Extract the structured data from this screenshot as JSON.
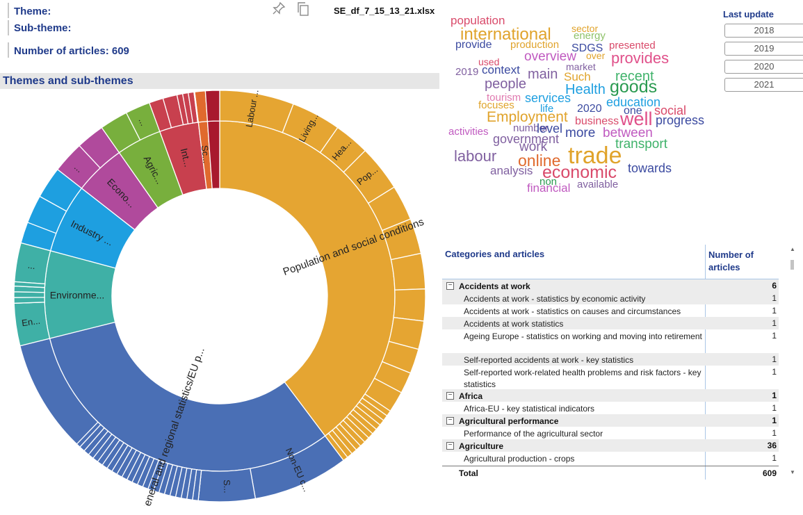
{
  "header": {
    "theme_label": "Theme:",
    "subtheme_label": "Sub-theme:",
    "articles_label": "Number of articles: 609",
    "file_name": "SE_df_7_15_13_21.xlsx",
    "pin_icon": "pin-icon",
    "copy_icon": "copy-icon"
  },
  "sunburst": {
    "section_title": "Themes and sub-themes",
    "colors": {
      "population": "#E5A532",
      "general": "#4A6FB5",
      "environment": "#3FB0A6",
      "industry": "#1E9FE0",
      "economy": "#B04A9C",
      "agriculture": "#78AF3D",
      "international": "#C8404E",
      "science": "#E06A2E",
      "other": "#A8192E"
    },
    "inner_labels": [
      "Population and social conditions",
      "General and regional statistics/EU p...",
      "Environme...",
      "Industry ...",
      "Econo...",
      "Agric...",
      "Int...",
      "Sc..."
    ],
    "outer_labels": [
      "Labour ...",
      "Living...",
      "Hea...",
      "Pop...",
      "Non-EU c...",
      "S...",
      "En...",
      "...",
      "...",
      "..."
    ]
  },
  "wordcloud": {
    "words": [
      {
        "t": "population",
        "c": "#d94a6a"
      },
      {
        "t": "international",
        "c": "#e0a32b"
      },
      {
        "t": "sector",
        "c": "#e0a32b"
      },
      {
        "t": "energy",
        "c": "#8fc26a"
      },
      {
        "t": "provide",
        "c": "#3b4aa0"
      },
      {
        "t": "production",
        "c": "#e0a32b"
      },
      {
        "t": "SDGS",
        "c": "#3b4aa0"
      },
      {
        "t": "presented",
        "c": "#d94a6a"
      },
      {
        "t": "used",
        "c": "#d94a6a"
      },
      {
        "t": "overview",
        "c": "#c05ac0"
      },
      {
        "t": "over",
        "c": "#e0a32b"
      },
      {
        "t": "provides",
        "c": "#e0508a"
      },
      {
        "t": "market",
        "c": "#8060a0"
      },
      {
        "t": "2019",
        "c": "#8060a0"
      },
      {
        "t": "context",
        "c": "#3b4aa0"
      },
      {
        "t": "main",
        "c": "#8060a0"
      },
      {
        "t": "Such",
        "c": "#e0a32b"
      },
      {
        "t": "recent",
        "c": "#3fb26a"
      },
      {
        "t": "people",
        "c": "#8060a0"
      },
      {
        "t": "Health",
        "c": "#1e9fe0"
      },
      {
        "t": "goods",
        "c": "#2a9a50"
      },
      {
        "t": "tourism",
        "c": "#e07ab0"
      },
      {
        "t": "services",
        "c": "#1e9fe0"
      },
      {
        "t": "education",
        "c": "#1e9fe0"
      },
      {
        "t": "focuses",
        "c": "#e0a32b"
      },
      {
        "t": "life",
        "c": "#1e9fe0"
      },
      {
        "t": "2020",
        "c": "#3b4aa0"
      },
      {
        "t": "one",
        "c": "#3b4aa0"
      },
      {
        "t": "social",
        "c": "#d94a6a"
      },
      {
        "t": "Employment",
        "c": "#e0a32b"
      },
      {
        "t": "business",
        "c": "#d94a6a"
      },
      {
        "t": "well",
        "c": "#e0508a"
      },
      {
        "t": "progress",
        "c": "#3b4aa0"
      },
      {
        "t": "activities",
        "c": "#c05ac0"
      },
      {
        "t": "number",
        "c": "#8060a0"
      },
      {
        "t": "level",
        "c": "#3b4aa0"
      },
      {
        "t": "more",
        "c": "#3b4aa0"
      },
      {
        "t": "between",
        "c": "#c05ac0"
      },
      {
        "t": "government",
        "c": "#8060a0"
      },
      {
        "t": "transport",
        "c": "#3fb26a"
      },
      {
        "t": "work",
        "c": "#8060a0"
      },
      {
        "t": "labour",
        "c": "#8060a0"
      },
      {
        "t": "trade",
        "c": "#e0a32b"
      },
      {
        "t": "online",
        "c": "#e06a2e"
      },
      {
        "t": "analysis",
        "c": "#8060a0"
      },
      {
        "t": "economic",
        "c": "#d94a6a"
      },
      {
        "t": "towards",
        "c": "#3b4aa0"
      },
      {
        "t": "non",
        "c": "#2a9a50"
      },
      {
        "t": "financial",
        "c": "#c05ac0"
      },
      {
        "t": "available",
        "c": "#8060a0"
      }
    ]
  },
  "last_update": {
    "title": "Last update",
    "years": [
      "2018",
      "2019",
      "2020",
      "2021"
    ]
  },
  "table": {
    "col_category": "Categories and articles",
    "col_count": "Number of articles",
    "rows": [
      {
        "type": "group",
        "label": "Accidents at work",
        "value": "6",
        "toggle": "−"
      },
      {
        "type": "item",
        "label": "Accidents at work - statistics by economic activity",
        "value": "1"
      },
      {
        "type": "item",
        "label": "Accidents at work - statistics on causes and circumstances",
        "value": "1"
      },
      {
        "type": "item",
        "label": "Accidents at work statistics",
        "value": "1"
      },
      {
        "type": "item",
        "label": "Ageing Europe - statistics on working and moving into retirement",
        "value": "1"
      },
      {
        "type": "item",
        "label": "Self-reported accidents at work - key statistics",
        "value": "1"
      },
      {
        "type": "item",
        "label": "Self-reported work-related health problems and risk factors - key statistics",
        "value": "1"
      },
      {
        "type": "group",
        "label": "Africa",
        "value": "1",
        "toggle": "−"
      },
      {
        "type": "item",
        "label": "Africa-EU - key statistical indicators",
        "value": "1"
      },
      {
        "type": "group",
        "label": "Agricultural performance",
        "value": "1",
        "toggle": "−"
      },
      {
        "type": "item",
        "label": "Performance of the agricultural sector",
        "value": "1"
      },
      {
        "type": "group",
        "label": "Agriculture",
        "value": "36",
        "toggle": "−"
      },
      {
        "type": "item",
        "label": "Agricultural production - crops",
        "value": "1"
      }
    ],
    "total_label": "Total",
    "total_value": "609"
  }
}
